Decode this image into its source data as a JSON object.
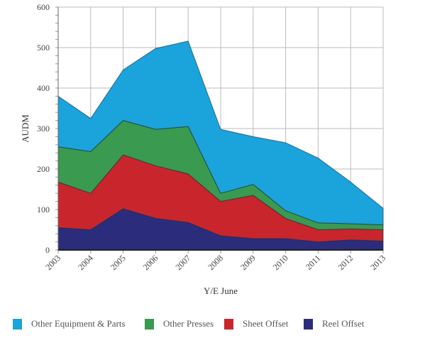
{
  "chart_data": {
    "type": "area",
    "stacked": true,
    "title": "",
    "xlabel": "Y/E June",
    "ylabel": "AUDM",
    "ylim": [
      0,
      600
    ],
    "yticks": [
      0,
      100,
      200,
      300,
      400,
      500,
      600
    ],
    "grid": true,
    "legend_position": "bottom",
    "categories": [
      "2003",
      "2004",
      "2005",
      "2006",
      "2007",
      "2008",
      "2009",
      "2010",
      "2011",
      "2012",
      "2013"
    ],
    "series": [
      {
        "name": "Reel Offset",
        "color": "#2b2d7c",
        "values": [
          55,
          50,
          102,
          78,
          68,
          35,
          28,
          28,
          20,
          25,
          22
        ]
      },
      {
        "name": "Sheet Offset",
        "color": "#c8262c",
        "values": [
          113,
          90,
          133,
          130,
          120,
          85,
          107,
          50,
          30,
          27,
          28
        ]
      },
      {
        "name": "Other Presses",
        "color": "#3a9a50",
        "values": [
          87,
          103,
          85,
          90,
          117,
          20,
          27,
          19,
          17,
          13,
          12
        ]
      },
      {
        "name": "Other Equipment & Parts",
        "color": "#1ba3dc",
        "values": [
          125,
          82,
          125,
          200,
          211,
          158,
          118,
          168,
          160,
          103,
          41
        ]
      }
    ]
  }
}
